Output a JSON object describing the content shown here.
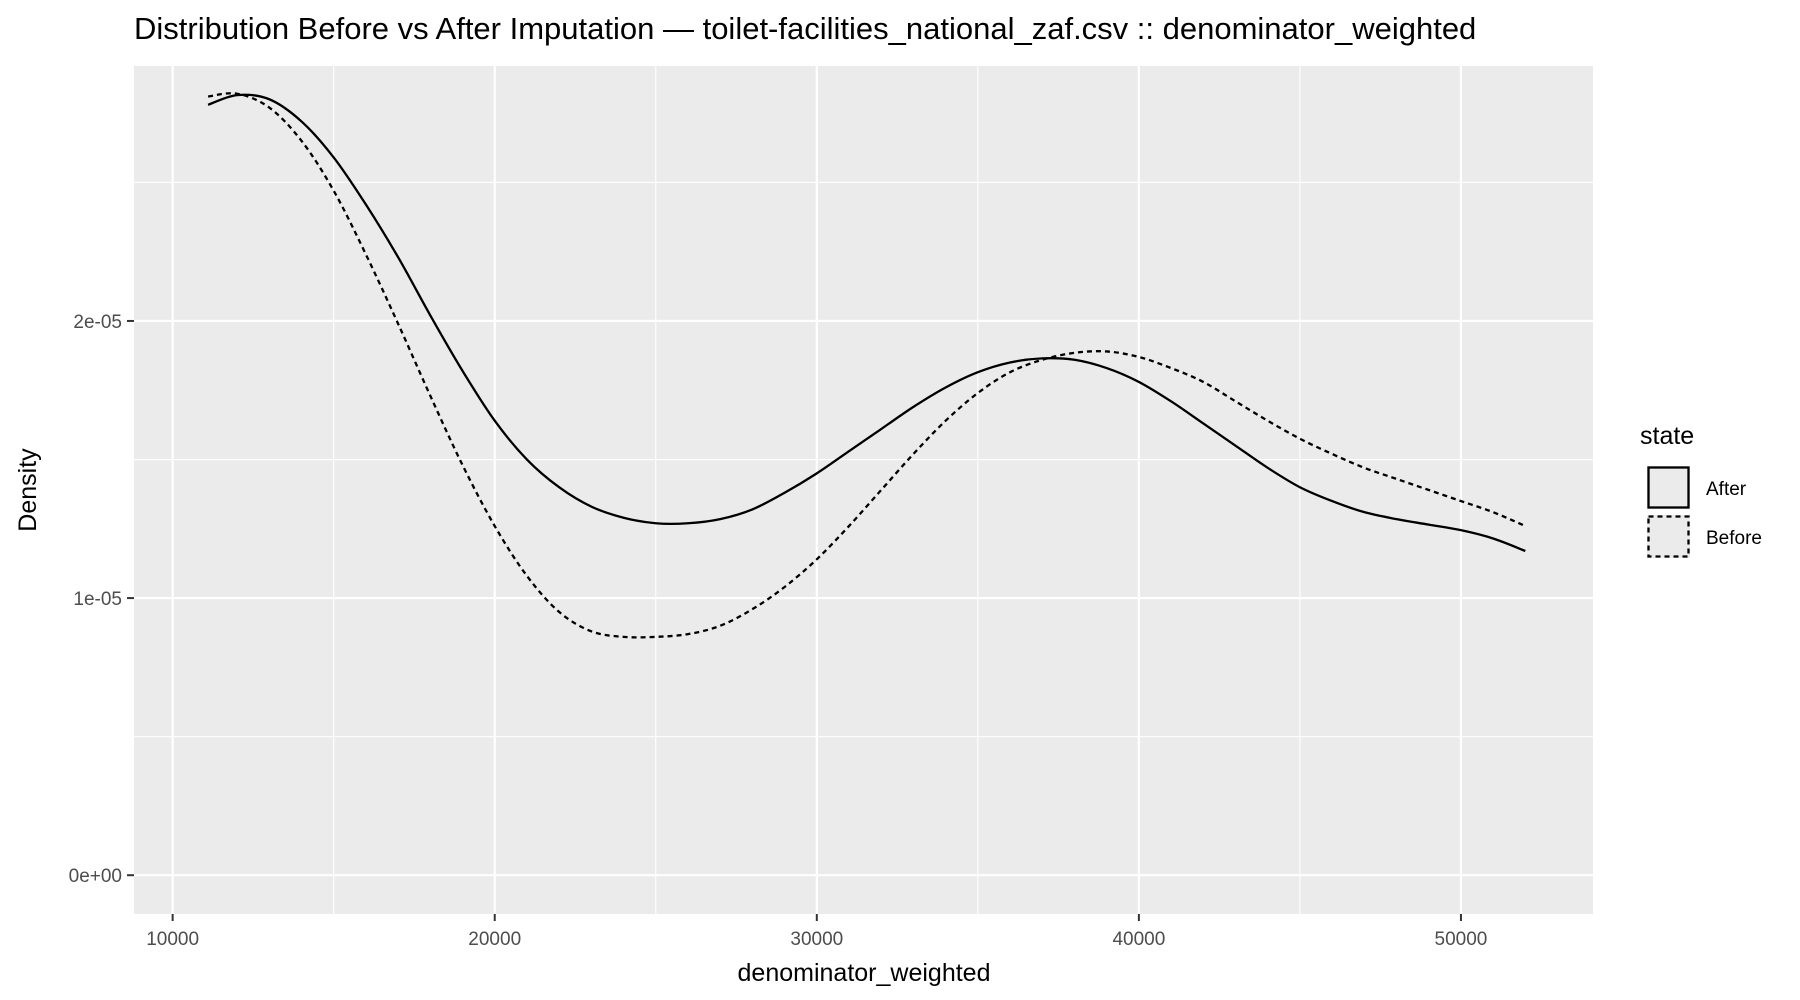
{
  "chart_data": {
    "type": "line",
    "title": "Distribution Before vs After Imputation — toilet-facilities_national_zaf.csv :: denominator_weighted",
    "xlabel": "denominator_weighted",
    "ylabel": "Density",
    "xlim": [
      8800,
      54100
    ],
    "ylim": [
      -1.4e-06,
      2.92e-05
    ],
    "x_ticks": [
      10000,
      20000,
      30000,
      40000,
      50000
    ],
    "x_tick_labels": [
      "10000",
      "20000",
      "30000",
      "40000",
      "50000"
    ],
    "y_ticks": [
      0,
      1e-05,
      2e-05
    ],
    "y_tick_labels": [
      "0e+00",
      "1e-05",
      "2e-05"
    ],
    "grid": true,
    "legend": {
      "title": "state",
      "placement": "right"
    },
    "series": [
      {
        "name": "After",
        "linetype": "solid",
        "x": [
          11100,
          12000,
          13000,
          14000,
          15000,
          16000,
          17000,
          18000,
          19000,
          20000,
          21000,
          22000,
          23000,
          24000,
          25000,
          26000,
          27000,
          28000,
          29000,
          30000,
          31000,
          32000,
          33000,
          34000,
          35000,
          36000,
          37000,
          38000,
          39000,
          40000,
          41000,
          42000,
          43000,
          44000,
          45000,
          46000,
          47000,
          48000,
          49000,
          50000,
          51000,
          52000
        ],
        "y": [
          2.78e-05,
          2.815e-05,
          2.8e-05,
          2.72e-05,
          2.59e-05,
          2.42e-05,
          2.23e-05,
          2.02e-05,
          1.82e-05,
          1.64e-05,
          1.5e-05,
          1.4e-05,
          1.33e-05,
          1.29e-05,
          1.27e-05,
          1.27e-05,
          1.285e-05,
          1.32e-05,
          1.38e-05,
          1.45e-05,
          1.53e-05,
          1.61e-05,
          1.69e-05,
          1.76e-05,
          1.815e-05,
          1.85e-05,
          1.865e-05,
          1.86e-05,
          1.83e-05,
          1.78e-05,
          1.71e-05,
          1.63e-05,
          1.55e-05,
          1.47e-05,
          1.4e-05,
          1.35e-05,
          1.31e-05,
          1.285e-05,
          1.265e-05,
          1.245e-05,
          1.215e-05,
          1.17e-05
        ]
      },
      {
        "name": "Before",
        "linetype": "dotted",
        "x": [
          11100,
          12000,
          13000,
          14000,
          15000,
          16000,
          17000,
          18000,
          19000,
          20000,
          21000,
          22000,
          23000,
          24000,
          25000,
          26000,
          27000,
          28000,
          29000,
          30000,
          31000,
          32000,
          33000,
          34000,
          35000,
          36000,
          37000,
          38000,
          39000,
          40000,
          41000,
          42000,
          43000,
          44000,
          45000,
          46000,
          47000,
          48000,
          49000,
          50000,
          51000,
          52000
        ],
        "y": [
          2.81e-05,
          2.82e-05,
          2.77e-05,
          2.65e-05,
          2.47e-05,
          2.24e-05,
          1.99e-05,
          1.73e-05,
          1.48e-05,
          1.26e-05,
          1.08e-05,
          9.5e-06,
          8.8e-06,
          8.6e-06,
          8.6e-06,
          8.7e-06,
          9e-06,
          9.6e-06,
          1.04e-05,
          1.14e-05,
          1.26e-05,
          1.39e-05,
          1.52e-05,
          1.64e-05,
          1.74e-05,
          1.815e-05,
          1.86e-05,
          1.885e-05,
          1.89e-05,
          1.87e-05,
          1.83e-05,
          1.78e-05,
          1.71e-05,
          1.64e-05,
          1.575e-05,
          1.52e-05,
          1.47e-05,
          1.43e-05,
          1.39e-05,
          1.35e-05,
          1.31e-05,
          1.26e-05
        ]
      }
    ]
  }
}
